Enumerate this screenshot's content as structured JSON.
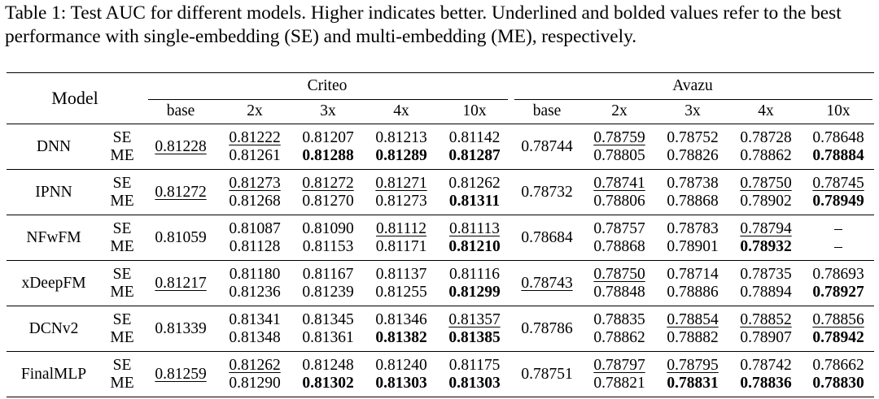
{
  "caption": "Table 1: Test AUC for different models. Higher indicates better. Underlined and bolded values refer to the best performance with single-embedding (SE) and multi-embedding (ME), respectively.",
  "header": {
    "model": "Model",
    "criteo": "Criteo",
    "avazu": "Avazu",
    "criteo_cols": [
      "base",
      "2x",
      "3x",
      "4x",
      "10x"
    ],
    "avazu_cols": [
      "base",
      "2x",
      "3x",
      "4x",
      "10x"
    ]
  },
  "rows": [
    {
      "model": "DNN",
      "se": "SE",
      "me": "ME",
      "criteo_base": {
        "v": "0.81228",
        "u": true
      },
      "criteo": [
        {
          "se": "0.81222",
          "se_u": true,
          "me": "0.81261",
          "me_b": false
        },
        {
          "se": "0.81207",
          "se_u": false,
          "me": "0.81288",
          "me_b": true
        },
        {
          "se": "0.81213",
          "se_u": false,
          "me": "0.81289",
          "me_b": true
        },
        {
          "se": "0.81142",
          "se_u": false,
          "me": "0.81287",
          "me_b": true
        }
      ],
      "avazu_base": {
        "v": "0.78744",
        "u": false
      },
      "avazu": [
        {
          "se": "0.78759",
          "se_u": true,
          "me": "0.78805",
          "me_b": false
        },
        {
          "se": "0.78752",
          "se_u": false,
          "me": "0.78826",
          "me_b": false
        },
        {
          "se": "0.78728",
          "se_u": false,
          "me": "0.78862",
          "me_b": false
        },
        {
          "se": "0.78648",
          "se_u": false,
          "me": "0.78884",
          "me_b": true
        }
      ]
    },
    {
      "model": "IPNN",
      "se": "SE",
      "me": "ME",
      "criteo_base": {
        "v": "0.81272",
        "u": true
      },
      "criteo": [
        {
          "se": "0.81273",
          "se_u": true,
          "me": "0.81268",
          "me_b": false
        },
        {
          "se": "0.81272",
          "se_u": true,
          "me": "0.81270",
          "me_b": false
        },
        {
          "se": "0.81271",
          "se_u": true,
          "me": "0.81273",
          "me_b": false
        },
        {
          "se": "0.81262",
          "se_u": false,
          "me": "0.81311",
          "me_b": true
        }
      ],
      "avazu_base": {
        "v": "0.78732",
        "u": false
      },
      "avazu": [
        {
          "se": "0.78741",
          "se_u": true,
          "me": "0.78806",
          "me_b": false
        },
        {
          "se": "0.78738",
          "se_u": false,
          "me": "0.78868",
          "me_b": false
        },
        {
          "se": "0.78750",
          "se_u": true,
          "me": "0.78902",
          "me_b": false
        },
        {
          "se": "0.78745",
          "se_u": true,
          "me": "0.78949",
          "me_b": true
        }
      ]
    },
    {
      "model": "NFwFM",
      "se": "SE",
      "me": "ME",
      "criteo_base": {
        "v": "0.81059",
        "u": false
      },
      "criteo": [
        {
          "se": "0.81087",
          "se_u": false,
          "me": "0.81128",
          "me_b": false
        },
        {
          "se": "0.81090",
          "se_u": false,
          "me": "0.81153",
          "me_b": false
        },
        {
          "se": "0.81112",
          "se_u": true,
          "me": "0.81171",
          "me_b": false
        },
        {
          "se": "0.81113",
          "se_u": true,
          "me": "0.81210",
          "me_b": true
        }
      ],
      "avazu_base": {
        "v": "0.78684",
        "u": false
      },
      "avazu": [
        {
          "se": "0.78757",
          "se_u": false,
          "me": "0.78868",
          "me_b": false
        },
        {
          "se": "0.78783",
          "se_u": false,
          "me": "0.78901",
          "me_b": false
        },
        {
          "se": "0.78794",
          "se_u": true,
          "me": "0.78932",
          "me_b": true
        },
        {
          "se": "–",
          "se_u": false,
          "me": "–",
          "me_b": false
        }
      ]
    },
    {
      "model": "xDeepFM",
      "se": "SE",
      "me": "ME",
      "criteo_base": {
        "v": "0.81217",
        "u": true
      },
      "criteo": [
        {
          "se": "0.81180",
          "se_u": false,
          "me": "0.81236",
          "me_b": false
        },
        {
          "se": "0.81167",
          "se_u": false,
          "me": "0.81239",
          "me_b": false
        },
        {
          "se": "0.81137",
          "se_u": false,
          "me": "0.81255",
          "me_b": false
        },
        {
          "se": "0.81116",
          "se_u": false,
          "me": "0.81299",
          "me_b": true
        }
      ],
      "avazu_base": {
        "v": "0.78743",
        "u": true
      },
      "avazu": [
        {
          "se": "0.78750",
          "se_u": true,
          "me": "0.78848",
          "me_b": false
        },
        {
          "se": "0.78714",
          "se_u": false,
          "me": "0.78886",
          "me_b": false
        },
        {
          "se": "0.78735",
          "se_u": false,
          "me": "0.78894",
          "me_b": false
        },
        {
          "se": "0.78693",
          "se_u": false,
          "me": "0.78927",
          "me_b": true
        }
      ]
    },
    {
      "model": "DCNv2",
      "se": "SE",
      "me": "ME",
      "criteo_base": {
        "v": "0.81339",
        "u": false
      },
      "criteo": [
        {
          "se": "0.81341",
          "se_u": false,
          "me": "0.81348",
          "me_b": false
        },
        {
          "se": "0.81345",
          "se_u": false,
          "me": "0.81361",
          "me_b": false
        },
        {
          "se": "0.81346",
          "se_u": false,
          "me": "0.81382",
          "me_b": true
        },
        {
          "se": "0.81357",
          "se_u": true,
          "me": "0.81385",
          "me_b": true
        }
      ],
      "avazu_base": {
        "v": "0.78786",
        "u": false
      },
      "avazu": [
        {
          "se": "0.78835",
          "se_u": false,
          "me": "0.78862",
          "me_b": false
        },
        {
          "se": "0.78854",
          "se_u": true,
          "me": "0.78882",
          "me_b": false
        },
        {
          "se": "0.78852",
          "se_u": true,
          "me": "0.78907",
          "me_b": false
        },
        {
          "se": "0.78856",
          "se_u": true,
          "me": "0.78942",
          "me_b": true
        }
      ]
    },
    {
      "model": "FinalMLP",
      "se": "SE",
      "me": "ME",
      "criteo_base": {
        "v": "0.81259",
        "u": true
      },
      "criteo": [
        {
          "se": "0.81262",
          "se_u": true,
          "me": "0.81290",
          "me_b": false
        },
        {
          "se": "0.81248",
          "se_u": false,
          "me": "0.81302",
          "me_b": true
        },
        {
          "se": "0.81240",
          "se_u": false,
          "me": "0.81303",
          "me_b": true
        },
        {
          "se": "0.81175",
          "se_u": false,
          "me": "0.81303",
          "me_b": true
        }
      ],
      "avazu_base": {
        "v": "0.78751",
        "u": false
      },
      "avazu": [
        {
          "se": "0.78797",
          "se_u": true,
          "me": "0.78821",
          "me_b": false
        },
        {
          "se": "0.78795",
          "se_u": true,
          "me": "0.78831",
          "me_b": true
        },
        {
          "se": "0.78742",
          "se_u": false,
          "me": "0.78836",
          "me_b": true
        },
        {
          "se": "0.78662",
          "se_u": false,
          "me": "0.78830",
          "me_b": true
        }
      ]
    }
  ]
}
